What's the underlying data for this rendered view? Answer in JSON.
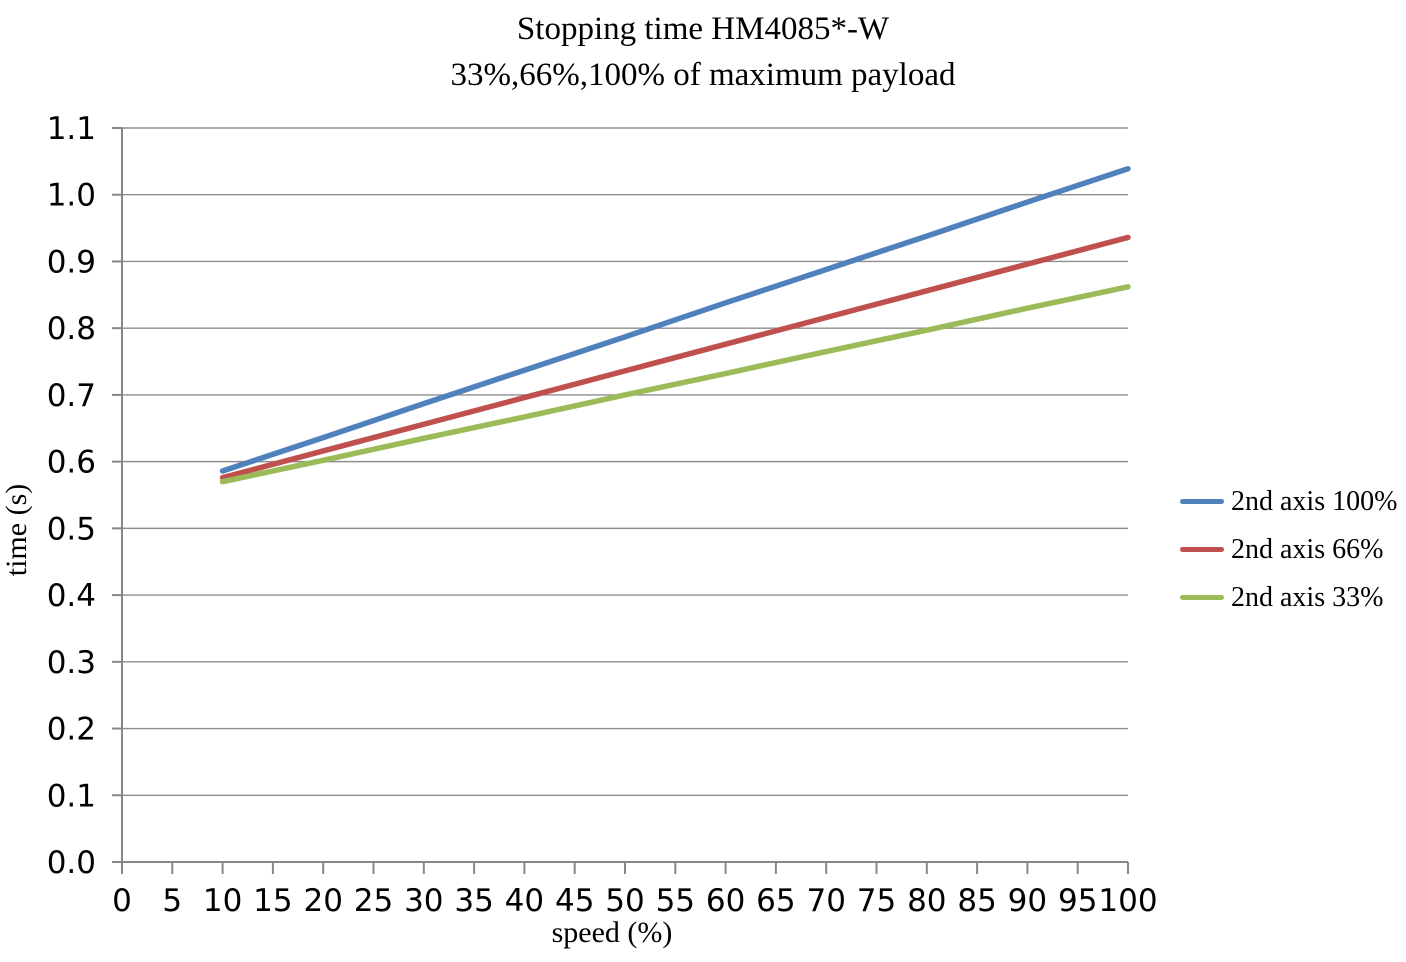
{
  "chart_data": {
    "type": "line",
    "title": "Stopping time HM4085*-W",
    "subtitle": "33%,66%,100% of maximum payload",
    "xlabel": "speed (%)",
    "ylabel": "time (s)",
    "xlim": [
      0,
      100
    ],
    "ylim": [
      0,
      1.1
    ],
    "x_ticks": [
      0,
      5,
      10,
      15,
      20,
      25,
      30,
      35,
      40,
      45,
      50,
      55,
      60,
      65,
      70,
      75,
      80,
      85,
      90,
      95,
      100
    ],
    "y_ticks": [
      "0.0",
      "0.1",
      "0.2",
      "0.3",
      "0.4",
      "0.5",
      "0.6",
      "0.7",
      "0.8",
      "0.9",
      "1.0",
      "1.1"
    ],
    "grid": "horizontal",
    "grid_color": "#8e8e8e",
    "legend_position": "right",
    "x": [
      10,
      20,
      30,
      40,
      50,
      60,
      70,
      80,
      90,
      100
    ],
    "series": [
      {
        "name": "2nd axis 100%",
        "color": "#4F81BD",
        "values": [
          0.586,
          0.636,
          0.687,
          0.737,
          0.787,
          0.838,
          0.888,
          0.938,
          0.989,
          1.039
        ]
      },
      {
        "name": "2nd axis 66%",
        "color": "#C0504D",
        "values": [
          0.576,
          0.616,
          0.656,
          0.696,
          0.736,
          0.776,
          0.816,
          0.856,
          0.896,
          0.936
        ]
      },
      {
        "name": "2nd axis 33%",
        "color": "#9BBB59",
        "values": [
          0.57,
          0.602,
          0.635,
          0.667,
          0.7,
          0.732,
          0.765,
          0.797,
          0.83,
          0.862
        ]
      }
    ]
  }
}
